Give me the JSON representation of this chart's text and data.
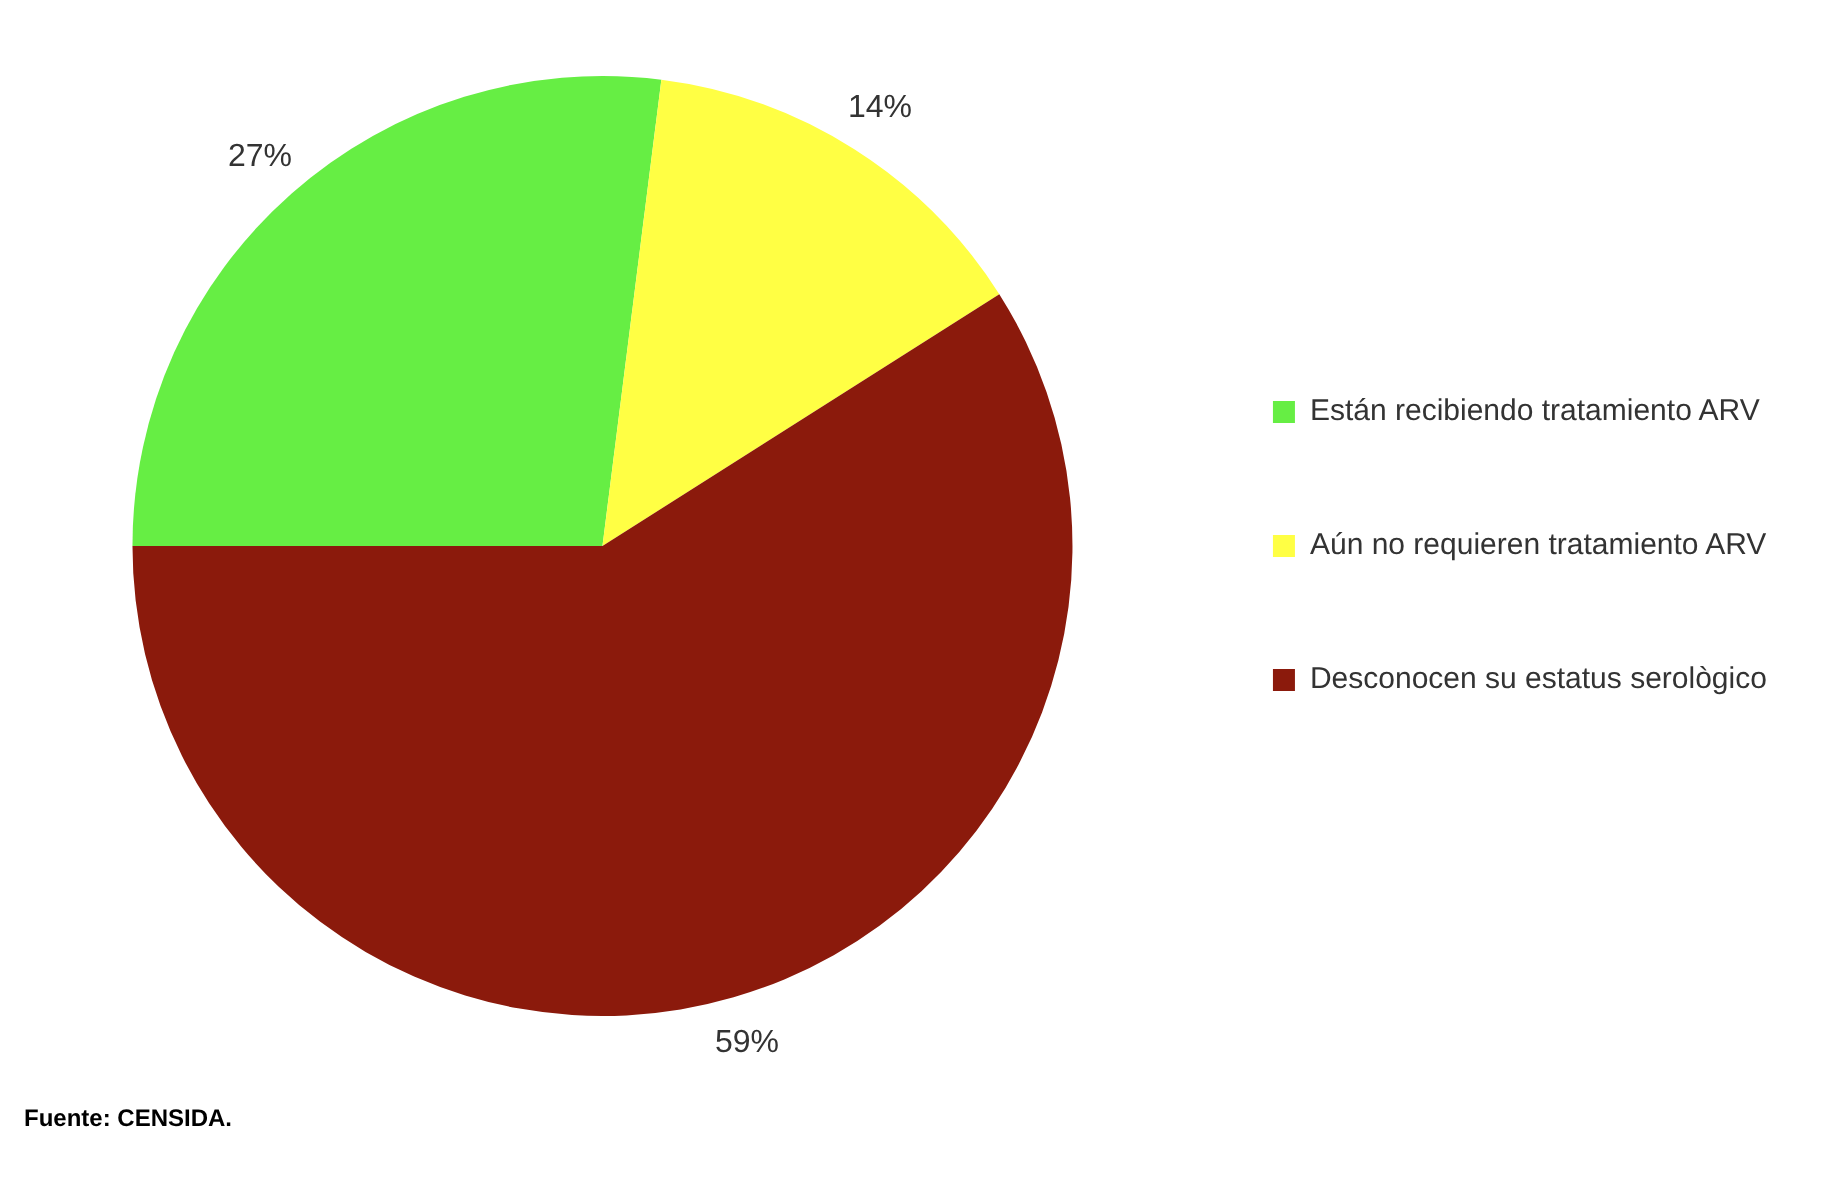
{
  "chart_data": {
    "type": "pie",
    "categories": [
      "Están recibiendo tratamiento ARV",
      "Aún no requieren tratamiento ARV",
      "Desconocen su estatus serològico"
    ],
    "values": [
      27,
      14,
      59
    ],
    "colors": [
      "#66ee44",
      "#ffff44",
      "#8b1a0c"
    ],
    "value_labels": [
      "27%",
      "14%",
      "59%"
    ],
    "legend": "right",
    "annotations": [
      "Fuente: CENSIDA."
    ]
  }
}
